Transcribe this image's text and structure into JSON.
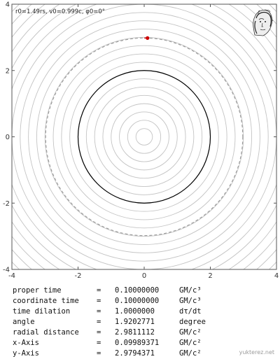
{
  "params_label": "r0=1.49rs, v0=0.999c, φ0=0°",
  "readout": [
    {
      "label": "proper time",
      "eq": "=",
      "value": "0.10000000",
      "unit": "GM/c³"
    },
    {
      "label": "coordinate time",
      "eq": "=",
      "value": "0.10000000",
      "unit": "GM/c³"
    },
    {
      "label": "time dilation",
      "eq": "=",
      "value": "1.0000000",
      "unit": "dτ/dt"
    },
    {
      "label": "angle",
      "eq": "=",
      "value": "1.9202771",
      "unit": "degree"
    },
    {
      "label": "radial distance",
      "eq": "=",
      "value": "2.9811112",
      "unit": "GM/c²"
    },
    {
      "label": "x-Axis",
      "eq": "=",
      "value": "0.09989371",
      "unit": "GM/c²"
    },
    {
      "label": "y-Axis",
      "eq": "=",
      "value": "2.9794371",
      "unit": "GM/c²"
    }
  ],
  "watermark": "yukterez.net",
  "chart_data": {
    "type": "scatter",
    "xlim": [
      -4,
      4
    ],
    "ylim": [
      -4,
      4
    ],
    "x_ticks": [
      -4,
      -2,
      0,
      2,
      4
    ],
    "y_ticks": [
      -4,
      -2,
      0,
      2,
      4
    ],
    "x_tick_labels": [
      "-4",
      "-2",
      "0",
      "2",
      "4"
    ],
    "y_tick_labels": [
      "-4",
      "-2",
      "0",
      "2",
      "4"
    ],
    "grid": true,
    "grid_circle_radii": [
      0.25,
      0.5,
      0.75,
      1.0,
      1.25,
      1.5,
      1.75,
      2.0,
      2.25,
      2.5,
      2.75,
      3.0,
      3.25,
      3.5,
      3.75,
      4.0,
      4.25,
      4.5,
      4.75,
      5.0,
      5.25,
      5.5,
      5.75
    ],
    "horizon_radius": 2,
    "initial_orbit_radius": 2.98,
    "trail": [
      [
        0.0,
        2.98
      ],
      [
        0.0999,
        2.9794
      ]
    ],
    "particle": {
      "x": 0.0999,
      "y": 2.9794
    },
    "colors": {
      "grid": "#c4c4c4",
      "horizon": "#000000",
      "initial_orbit": "#9a9a9a",
      "particle": "#cc0000",
      "frame": "#555555"
    }
  }
}
